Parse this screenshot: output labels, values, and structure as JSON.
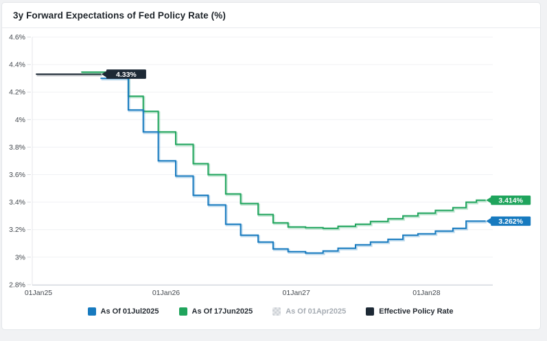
{
  "window": {
    "title": "3y Forward Expectations of Fed Policy Rate (%)"
  },
  "colors": {
    "blue": "#177abf",
    "green": "#1fa45c",
    "navy": "#1d2935",
    "disabled_swatch": "#cfd3d8",
    "disabled_text": "#a6acb3",
    "grid": "#f0f1f4",
    "axis_left": "#e4e6ea",
    "axis_bottom": "#c8ced6",
    "tick_text": "#41464c"
  },
  "legend": {
    "items": [
      {
        "label": "As Of 01Jul2025",
        "color": "#177abf",
        "disabled": false
      },
      {
        "label": "As Of 17Jun2025",
        "color": "#1fa45c",
        "disabled": false
      },
      {
        "label": "As Of 01Apr2025",
        "color": "#cfd3d8",
        "disabled": true
      },
      {
        "label": "Effective Policy Rate",
        "color": "#1d2935",
        "disabled": false
      }
    ]
  },
  "chart_data": {
    "type": "line",
    "subtype": "step-after",
    "title": "3y Forward Expectations of Fed Policy Rate (%)",
    "unit": "%",
    "grid": "horizontal-only",
    "legend_position": "bottom-center",
    "x_axis": {
      "origin": "2025-01-01",
      "ticks": [
        {
          "label": "01Jan25",
          "date": "2025-01-01"
        },
        {
          "label": "01Jan26",
          "date": "2026-01-01"
        },
        {
          "label": "01Jan27",
          "date": "2027-01-01"
        },
        {
          "label": "01Jan28",
          "date": "2028-01-01"
        }
      ]
    },
    "y_axis": {
      "min": 2.8,
      "max": 4.6,
      "tick_values": [
        4.6,
        4.4,
        4.2,
        4.0,
        3.8,
        3.6,
        3.4,
        3.2,
        3.0,
        2.8
      ],
      "tick_labels": [
        "4.6%",
        "4.4%",
        "4.2%",
        "4%",
        "3.8%",
        "3.6%",
        "3.4%",
        "3.2%",
        "3%",
        "2.8%"
      ]
    },
    "series": [
      {
        "name": "Effective Policy Rate",
        "color": "#1d2935",
        "visible": true,
        "badge_label": "4.33%",
        "points": [
          [
            "2025-01-01",
            4.33
          ],
          [
            "2025-07-03",
            4.33
          ]
        ]
      },
      {
        "name": "As Of 17Jun2025",
        "color": "#1fa45c",
        "visible": true,
        "badge_label": "3.414%",
        "points": [
          [
            "2025-05-08",
            4.345
          ],
          [
            "2025-09-17",
            4.17
          ],
          [
            "2025-10-29",
            4.06
          ],
          [
            "2025-12-10",
            3.91
          ],
          [
            "2026-01-28",
            3.82
          ],
          [
            "2026-03-18",
            3.68
          ],
          [
            "2026-04-29",
            3.6
          ],
          [
            "2026-06-17",
            3.46
          ],
          [
            "2026-07-29",
            3.39
          ],
          [
            "2026-09-16",
            3.31
          ],
          [
            "2026-10-28",
            3.25
          ],
          [
            "2026-12-09",
            3.22
          ],
          [
            "2027-01-27",
            3.215
          ],
          [
            "2027-03-17",
            3.21
          ],
          [
            "2027-04-28",
            3.225
          ],
          [
            "2027-06-16",
            3.24
          ],
          [
            "2027-07-28",
            3.26
          ],
          [
            "2027-09-15",
            3.28
          ],
          [
            "2027-10-27",
            3.3
          ],
          [
            "2027-12-08",
            3.32
          ],
          [
            "2028-01-26",
            3.34
          ],
          [
            "2028-03-15",
            3.36
          ],
          [
            "2028-04-21",
            3.4
          ],
          [
            "2028-05-20",
            3.414
          ],
          [
            "2028-06-15",
            3.414
          ]
        ]
      },
      {
        "name": "As Of 01Jul2025",
        "color": "#177abf",
        "visible": true,
        "badge_label": "3.262%",
        "points": [
          [
            "2025-07-01",
            4.3
          ],
          [
            "2025-09-17",
            4.07
          ],
          [
            "2025-10-29",
            3.91
          ],
          [
            "2025-12-10",
            3.7
          ],
          [
            "2026-01-28",
            3.59
          ],
          [
            "2026-03-18",
            3.45
          ],
          [
            "2026-04-29",
            3.38
          ],
          [
            "2026-06-17",
            3.24
          ],
          [
            "2026-07-29",
            3.16
          ],
          [
            "2026-09-16",
            3.11
          ],
          [
            "2026-10-28",
            3.06
          ],
          [
            "2026-12-09",
            3.04
          ],
          [
            "2027-01-27",
            3.03
          ],
          [
            "2027-03-17",
            3.045
          ],
          [
            "2027-04-28",
            3.065
          ],
          [
            "2027-06-16",
            3.09
          ],
          [
            "2027-07-28",
            3.11
          ],
          [
            "2027-09-15",
            3.13
          ],
          [
            "2027-10-27",
            3.16
          ],
          [
            "2027-12-08",
            3.17
          ],
          [
            "2028-01-26",
            3.19
          ],
          [
            "2028-03-15",
            3.21
          ],
          [
            "2028-04-21",
            3.262
          ],
          [
            "2028-06-15",
            3.262
          ]
        ]
      },
      {
        "name": "As Of 01Apr2025",
        "color": "#cfd3d8",
        "visible": false,
        "badge_label": null,
        "points": []
      }
    ]
  }
}
